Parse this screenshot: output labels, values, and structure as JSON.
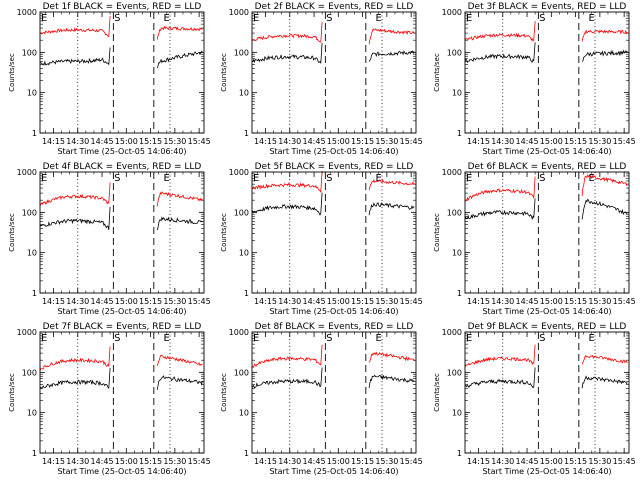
{
  "panels": [
    {
      "title": "Det 1f BLACK = Events, RED = LLD",
      "xtime": "Start Time (25-Oct-05 14:06:40)",
      "ylabel": "Counts/sec",
      "xticks": [
        "14:15",
        "14:30",
        "14:45",
        "15:00",
        "15:15",
        "15:30",
        "15:45"
      ],
      "markers": [
        "E",
        "S",
        "E"
      ],
      "black": [
        52,
        60,
        68,
        46,
        60,
        100
      ],
      "red": [
        300,
        360,
        330,
        200,
        400,
        380
      ]
    },
    {
      "title": "Det 2f BLACK = Events, RED = LLD",
      "xtime": "Start Time (25-Oct-05 14:06:40)",
      "ylabel": "Counts/sec",
      "xticks": [
        "14:15",
        "14:30",
        "14:45",
        "15:00",
        "15:15",
        "15:30",
        "15:45"
      ],
      "markers": [
        "E",
        "S",
        "E"
      ],
      "black": [
        60,
        78,
        70,
        55,
        90,
        100
      ],
      "red": [
        200,
        260,
        240,
        170,
        360,
        300
      ]
    },
    {
      "title": "Det 3f BLACK = Events, RED = LLD",
      "xtime": "Start Time (25-Oct-05 14:06:40)",
      "ylabel": "Counts/sec",
      "xticks": [
        "14:15",
        "14:30",
        "14:45",
        "15:00",
        "15:15",
        "15:30",
        "15:45"
      ],
      "markers": [
        "E",
        "S",
        "E"
      ],
      "black": [
        60,
        80,
        75,
        55,
        90,
        100
      ],
      "red": [
        200,
        270,
        250,
        180,
        330,
        320
      ]
    },
    {
      "title": "Det 4f BLACK = Events, RED = LLD",
      "xtime": "Start Time (25-Oct-05 14:06:40)",
      "ylabel": "Counts/sec",
      "xticks": [
        "14:15",
        "14:30",
        "14:45",
        "15:00",
        "15:15",
        "15:30",
        "15:45"
      ],
      "markers": [
        "E",
        "S",
        "E"
      ],
      "black": [
        45,
        62,
        52,
        38,
        70,
        55
      ],
      "red": [
        150,
        250,
        210,
        150,
        300,
        200
      ]
    },
    {
      "title": "Det 5f BLACK = Events, RED = LLD",
      "xtime": "Start Time (25-Oct-05 14:06:40)",
      "ylabel": "Counts/sec",
      "xticks": [
        "14:15",
        "14:30",
        "14:45",
        "15:00",
        "15:15",
        "15:30",
        "15:45"
      ],
      "markers": [
        "E",
        "S",
        "E"
      ],
      "black": [
        100,
        140,
        120,
        90,
        160,
        130
      ],
      "red": [
        400,
        480,
        440,
        380,
        600,
        500
      ]
    },
    {
      "title": "Det 6f BLACK = Events, RED = LLD",
      "xtime": "Start Time (25-Oct-05 14:06:40)",
      "ylabel": "Counts/sec",
      "xticks": [
        "14:15",
        "14:30",
        "14:45",
        "15:00",
        "15:15",
        "15:30",
        "15:45"
      ],
      "markers": [
        "E",
        "S",
        "E"
      ],
      "black": [
        70,
        100,
        90,
        65,
        200,
        90
      ],
      "red": [
        200,
        350,
        300,
        250,
        800,
        500
      ]
    },
    {
      "title": "Det 7f BLACK = Events, RED = LLD",
      "xtime": "Start Time (25-Oct-05 14:06:40)",
      "ylabel": "Counts/sec",
      "xticks": [
        "14:15",
        "14:30",
        "14:45",
        "15:00",
        "15:15",
        "15:30",
        "15:45"
      ],
      "markers": [
        "E",
        "S",
        "E"
      ],
      "black": [
        40,
        58,
        52,
        40,
        75,
        55
      ],
      "red": [
        120,
        200,
        180,
        140,
        250,
        150
      ]
    },
    {
      "title": "Det 8f BLACK = Events, RED = LLD",
      "xtime": "Start Time (25-Oct-05 14:06:40)",
      "ylabel": "Counts/sec",
      "xticks": [
        "14:15",
        "14:30",
        "14:45",
        "15:00",
        "15:15",
        "15:30",
        "15:45"
      ],
      "markers": [
        "E",
        "S",
        "E"
      ],
      "black": [
        45,
        60,
        58,
        45,
        80,
        60
      ],
      "red": [
        140,
        220,
        200,
        170,
        300,
        200
      ]
    },
    {
      "title": "Det 9f BLACK = Events, RED = LLD",
      "xtime": "Start Time (25-Oct-05 14:06:40)",
      "ylabel": "Counts/sec",
      "xticks": [
        "14:15",
        "14:30",
        "14:45",
        "15:00",
        "15:15",
        "15:30",
        "15:45"
      ],
      "markers": [
        "E",
        "S",
        "E"
      ],
      "black": [
        45,
        60,
        55,
        42,
        75,
        55
      ],
      "red": [
        140,
        220,
        200,
        160,
        260,
        180
      ]
    }
  ],
  "chart_data": {
    "type": "line",
    "y_scale": "log",
    "ylim": [
      1,
      1000
    ],
    "yticks": [
      "1",
      "10",
      "100",
      "1000"
    ],
    "x_range": [
      "14:06:40",
      "15:48"
    ],
    "series_names": [
      "BLACK = Events",
      "RED = LLD"
    ],
    "colors": {
      "events": "#000000",
      "lld": "#ff0000"
    }
  }
}
